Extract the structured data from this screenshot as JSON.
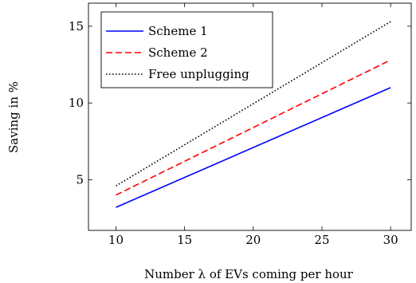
{
  "chart_data": {
    "type": "line",
    "xlabel": "Number λ of EVs coming per hour",
    "ylabel": "Saving in %",
    "xlim": [
      8,
      31.5
    ],
    "ylim": [
      1.7,
      16.5
    ],
    "xticks": [
      10,
      15,
      20,
      25,
      30
    ],
    "yticks": [
      5,
      10,
      15
    ],
    "legend_position": "top-left",
    "grid": false,
    "series": [
      {
        "name": "Scheme 1",
        "color": "#0000ff",
        "style": "solid",
        "x": [
          10,
          30
        ],
        "y": [
          3.2,
          11.0
        ]
      },
      {
        "name": "Scheme 2",
        "color": "#ff0000",
        "style": "dashed",
        "x": [
          10,
          30
        ],
        "y": [
          4.0,
          12.8
        ]
      },
      {
        "name": "Free unplugging",
        "color": "#000000",
        "style": "dotted",
        "x": [
          10,
          30
        ],
        "y": [
          4.6,
          15.3
        ]
      }
    ]
  }
}
